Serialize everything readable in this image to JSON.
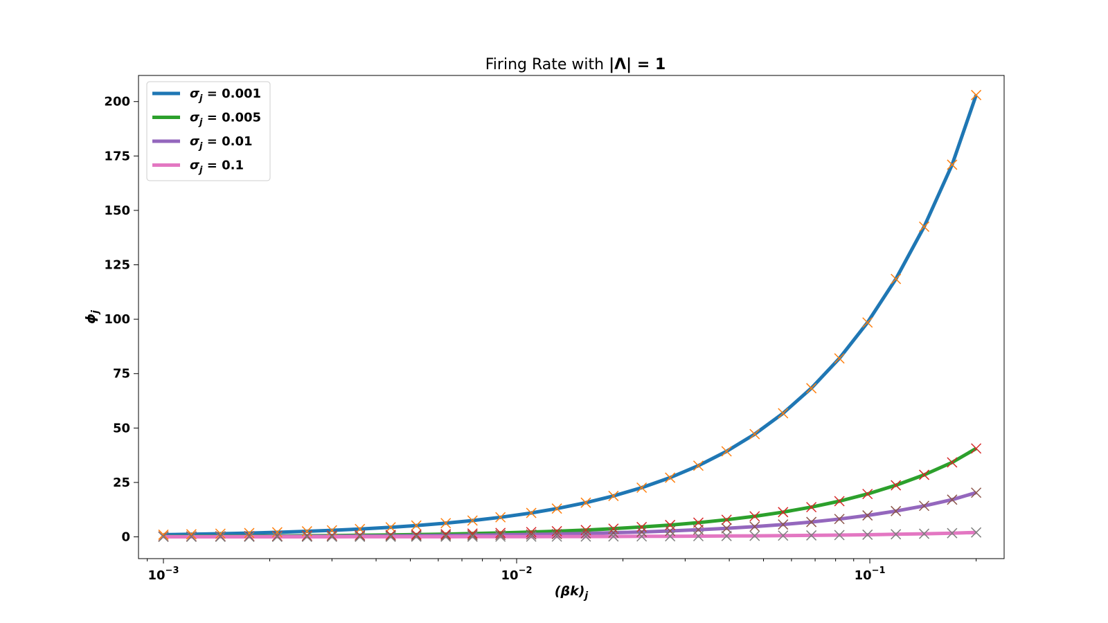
{
  "chart_data": {
    "type": "line",
    "title": "Firing Rate with |Λ| = 1",
    "xlabel": "(βk)_j",
    "ylabel": "ϕ_j",
    "xscale": "log",
    "xlim": [
      0.00085,
      0.24
    ],
    "ylim": [
      -10,
      212
    ],
    "x_ticks": [
      {
        "value": 0.001,
        "base": "10",
        "exp": "−3"
      },
      {
        "value": 0.01,
        "base": "10",
        "exp": "−2"
      },
      {
        "value": 0.1,
        "base": "10",
        "exp": "−1"
      }
    ],
    "y_ticks": [
      0,
      25,
      50,
      75,
      100,
      125,
      150,
      175,
      200
    ],
    "grid": false,
    "legend_position": "top-left",
    "series": [
      {
        "name": "σj = 0.001",
        "color": "#1f77b4",
        "marker_color": "#ff7f0e",
        "x": [
          0.001,
          0.0012,
          0.00145,
          0.00175,
          0.0021,
          0.00255,
          0.003,
          0.0036,
          0.0044,
          0.0052,
          0.0063,
          0.0075,
          0.009,
          0.011,
          0.013,
          0.0157,
          0.0188,
          0.0226,
          0.0272,
          0.0327,
          0.0393,
          0.0472,
          0.0568,
          0.0683,
          0.082,
          0.0985,
          0.1185,
          0.1425,
          0.171,
          0.2
        ],
        "y": [
          1.0,
          1.2,
          1.45,
          1.75,
          2.1,
          2.55,
          3.0,
          3.6,
          4.4,
          5.2,
          6.3,
          7.5,
          9.0,
          11.0,
          13.0,
          15.7,
          18.8,
          22.6,
          27.2,
          32.7,
          39.3,
          47.2,
          56.8,
          68.3,
          82.0,
          98.5,
          118.5,
          142.5,
          171.0,
          203.0
        ]
      },
      {
        "name": "σj = 0.005",
        "color": "#2ca02c",
        "marker_color": "#d62728",
        "x": [
          0.001,
          0.0012,
          0.00145,
          0.00175,
          0.0021,
          0.00255,
          0.003,
          0.0036,
          0.0044,
          0.0052,
          0.0063,
          0.0075,
          0.009,
          0.011,
          0.013,
          0.0157,
          0.0188,
          0.0226,
          0.0272,
          0.0327,
          0.0393,
          0.0472,
          0.0568,
          0.0683,
          0.082,
          0.0985,
          0.1185,
          0.1425,
          0.171,
          0.2
        ],
        "y": [
          0.2,
          0.24,
          0.29,
          0.35,
          0.42,
          0.51,
          0.6,
          0.72,
          0.88,
          1.04,
          1.26,
          1.5,
          1.8,
          2.2,
          2.6,
          3.14,
          3.76,
          4.52,
          5.44,
          6.54,
          7.86,
          9.44,
          11.36,
          13.66,
          16.4,
          19.7,
          23.7,
          28.5,
          34.2,
          40.6
        ]
      },
      {
        "name": "σj = 0.01",
        "color": "#9467bd",
        "marker_color": "#8c564b",
        "x": [
          0.001,
          0.0012,
          0.00145,
          0.00175,
          0.0021,
          0.00255,
          0.003,
          0.0036,
          0.0044,
          0.0052,
          0.0063,
          0.0075,
          0.009,
          0.011,
          0.013,
          0.0157,
          0.0188,
          0.0226,
          0.0272,
          0.0327,
          0.0393,
          0.0472,
          0.0568,
          0.0683,
          0.082,
          0.0985,
          0.1185,
          0.1425,
          0.171,
          0.2
        ],
        "y": [
          0.1,
          0.12,
          0.15,
          0.18,
          0.21,
          0.26,
          0.3,
          0.36,
          0.44,
          0.52,
          0.63,
          0.75,
          0.9,
          1.1,
          1.3,
          1.57,
          1.88,
          2.26,
          2.72,
          3.27,
          3.93,
          4.72,
          5.68,
          6.83,
          8.2,
          9.85,
          11.85,
          14.25,
          17.1,
          20.3
        ]
      },
      {
        "name": "σj = 0.1",
        "color": "#e377c2",
        "marker_color": "#7f7f7f",
        "x": [
          0.001,
          0.0012,
          0.00145,
          0.00175,
          0.0021,
          0.00255,
          0.003,
          0.0036,
          0.0044,
          0.0052,
          0.0063,
          0.0075,
          0.009,
          0.011,
          0.013,
          0.0157,
          0.0188,
          0.0226,
          0.0272,
          0.0327,
          0.0393,
          0.0472,
          0.0568,
          0.0683,
          0.082,
          0.0985,
          0.1185,
          0.1425,
          0.171,
          0.2
        ],
        "y": [
          0.01,
          0.012,
          0.015,
          0.018,
          0.021,
          0.026,
          0.03,
          0.036,
          0.044,
          0.052,
          0.063,
          0.075,
          0.09,
          0.11,
          0.13,
          0.157,
          0.188,
          0.226,
          0.272,
          0.327,
          0.393,
          0.472,
          0.568,
          0.683,
          0.82,
          0.985,
          1.185,
          1.425,
          1.71,
          2.03
        ]
      }
    ]
  }
}
